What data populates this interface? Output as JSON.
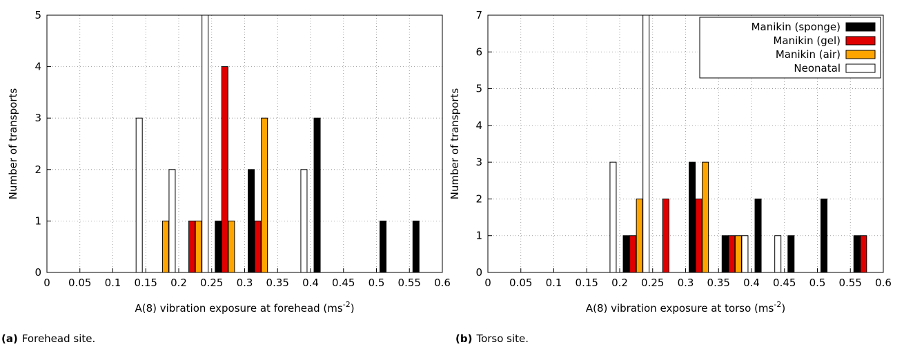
{
  "chart_data": [
    {
      "type": "bar",
      "ylabel": "Number of transports",
      "xlabel": {
        "text": "A(8) vibration exposure at forehead (ms",
        "superscript": "-2",
        "suffix": ")"
      },
      "caption": {
        "label": "(a)",
        "text": "Forehead site."
      },
      "xlim": [
        0,
        0.6
      ],
      "xticks": [
        0,
        0.05,
        0.1,
        0.15,
        0.2,
        0.25,
        0.3,
        0.35,
        0.4,
        0.45,
        0.5,
        0.55,
        0.6
      ],
      "ylim": [
        0,
        5
      ],
      "yticks": [
        0,
        1,
        2,
        3,
        4,
        5
      ],
      "grid": true,
      "series": [
        {
          "color": "#000000",
          "x": [
            0.26,
            0.31,
            0.41,
            0.51,
            0.56
          ],
          "values": [
            1,
            2,
            3,
            1,
            1
          ]
        },
        {
          "color": "#e00000",
          "x": [
            0.22,
            0.27,
            0.32
          ],
          "values": [
            1,
            4,
            1
          ]
        },
        {
          "color": "#ffa500",
          "x": [
            0.18,
            0.23,
            0.28,
            0.33
          ],
          "values": [
            1,
            1,
            1,
            3
          ]
        },
        {
          "color": "#ffffff",
          "x": [
            0.14,
            0.19,
            0.24,
            0.39
          ],
          "values": [
            3,
            2,
            5,
            2
          ]
        }
      ]
    },
    {
      "type": "bar",
      "ylabel": "Number of transports",
      "xlabel": {
        "text": "A(8) vibration exposure at torso (ms",
        "superscript": "-2",
        "suffix": ")"
      },
      "caption": {
        "label": "(b)",
        "text": "Torso site."
      },
      "xlim": [
        0,
        0.6
      ],
      "xticks": [
        0,
        0.05,
        0.1,
        0.15,
        0.2,
        0.25,
        0.3,
        0.35,
        0.4,
        0.45,
        0.5,
        0.55,
        0.6
      ],
      "ylim": [
        0,
        7
      ],
      "yticks": [
        0,
        1,
        2,
        3,
        4,
        5,
        6,
        7
      ],
      "grid": true,
      "legend": "upper right",
      "series": [
        {
          "name": "Manikin (sponge)",
          "color": "#000000",
          "x": [
            0.21,
            0.31,
            0.36,
            0.41,
            0.46,
            0.51,
            0.56
          ],
          "values": [
            1,
            3,
            1,
            2,
            1,
            2,
            1
          ]
        },
        {
          "name": "Manikin (gel)",
          "color": "#e00000",
          "x": [
            0.22,
            0.27,
            0.32,
            0.37,
            0.57
          ],
          "values": [
            1,
            2,
            2,
            1,
            1
          ]
        },
        {
          "name": "Manikin (air)",
          "color": "#ffa500",
          "x": [
            0.23,
            0.33,
            0.38
          ],
          "values": [
            2,
            3,
            1
          ]
        },
        {
          "name": "Neonatal",
          "color": "#ffffff",
          "x": [
            0.19,
            0.24,
            0.39,
            0.44
          ],
          "values": [
            3,
            7,
            1,
            1
          ]
        }
      ]
    }
  ]
}
